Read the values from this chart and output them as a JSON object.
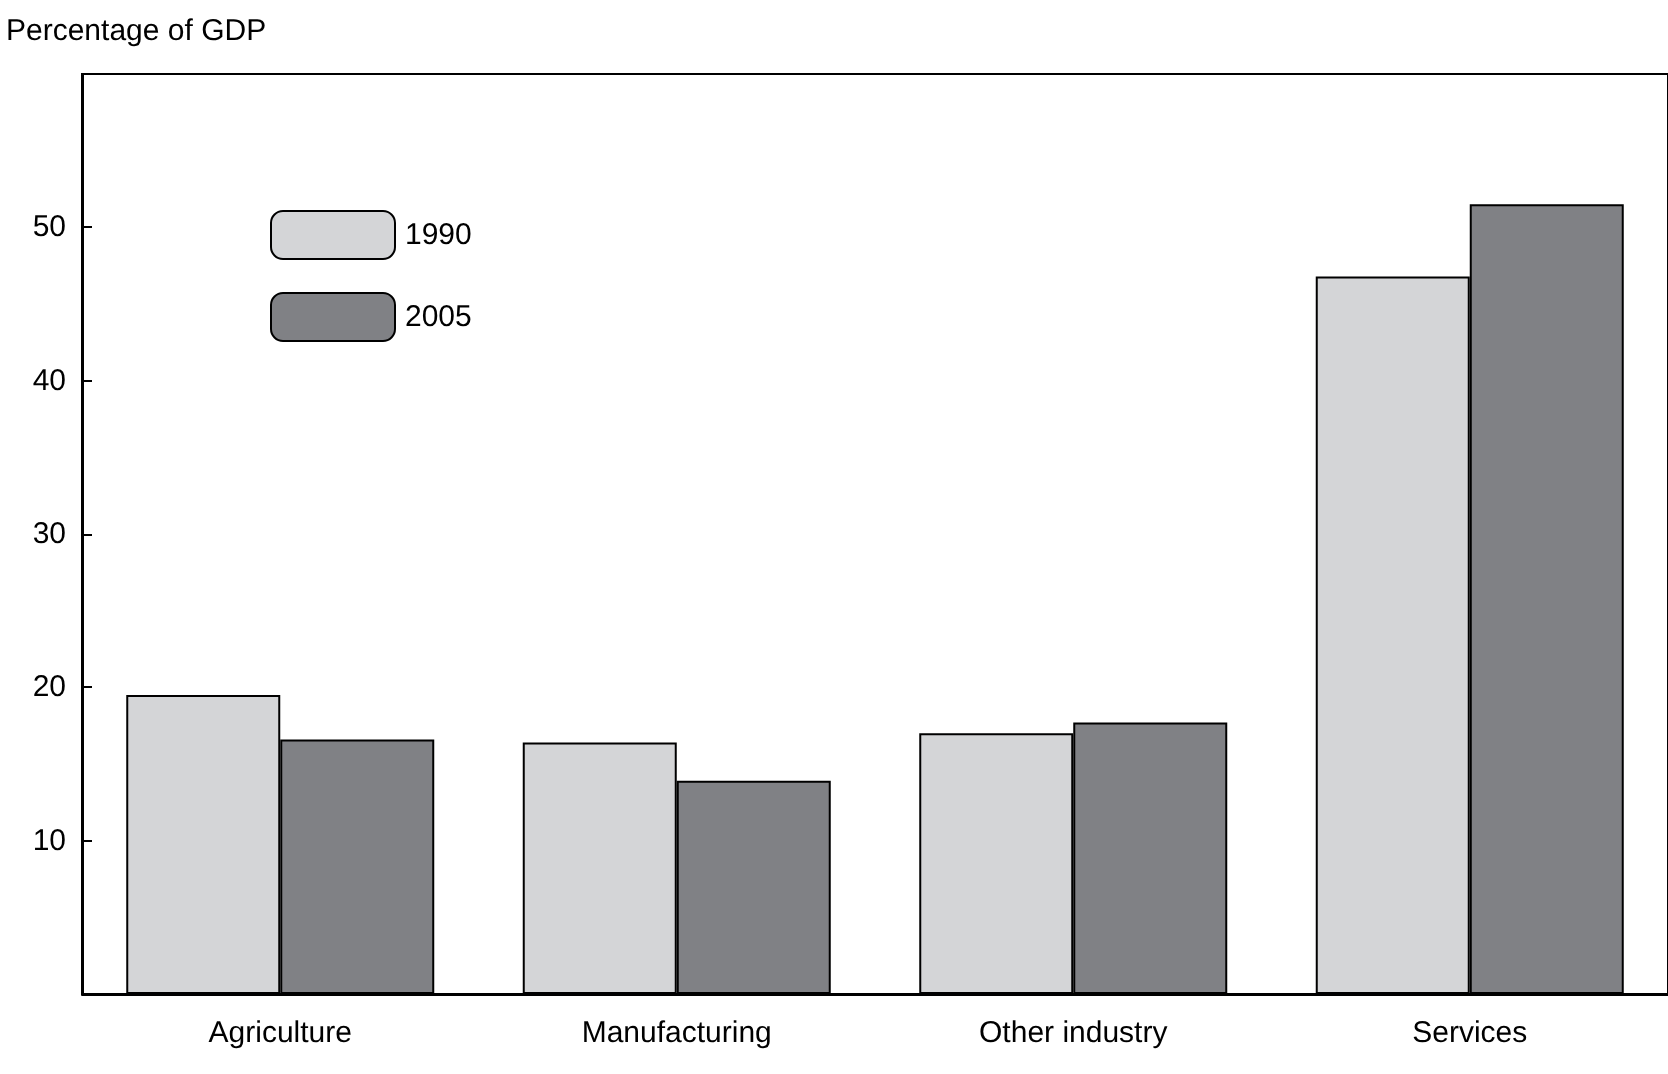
{
  "chart_data": {
    "type": "bar",
    "ylabel": "Percentage of GDP",
    "categories": [
      "Agriculture",
      "Manufacturing",
      "Other industry",
      "Services"
    ],
    "series": [
      {
        "name": "1990",
        "color": "#d4d5d7",
        "values": [
          19.5,
          16.4,
          17.0,
          46.8
        ]
      },
      {
        "name": "2005",
        "color": "#808185",
        "values": [
          16.6,
          13.9,
          17.7,
          51.5
        ]
      }
    ],
    "ylim": [
      0,
      60
    ],
    "yticks": [
      10,
      20,
      30,
      40,
      50
    ],
    "grid": false,
    "legend": "top left"
  }
}
